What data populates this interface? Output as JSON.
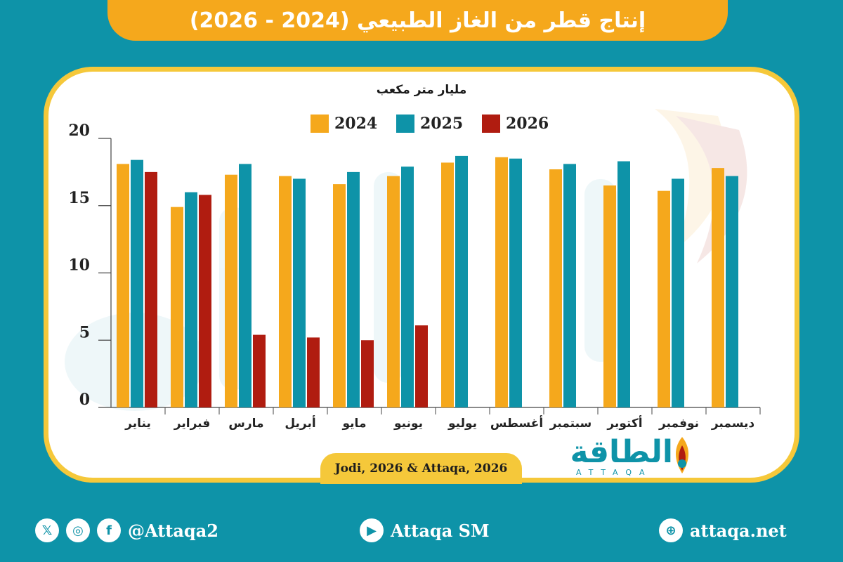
{
  "title": "إنتاج قطر من الغاز الطبيعي (2024 - 2026)",
  "chart_data": {
    "type": "bar",
    "unit_label": "مليار متر مكعب",
    "categories": [
      "يناير",
      "فبراير",
      "مارس",
      "أبريل",
      "مايو",
      "يونيو",
      "يوليو",
      "أغسطس",
      "سبتمبر",
      "أكتوبر",
      "نوفمبر",
      "ديسمبر"
    ],
    "series": [
      {
        "name": "2024",
        "color": "#f5a81c",
        "values": [
          18.1,
          14.9,
          17.3,
          17.2,
          16.6,
          17.2,
          18.2,
          18.6,
          17.7,
          16.5,
          16.1,
          17.8
        ]
      },
      {
        "name": "2025",
        "color": "#0e93a8",
        "values": [
          18.4,
          16.0,
          18.1,
          17.0,
          17.5,
          17.9,
          18.7,
          18.5,
          18.1,
          18.3,
          17.0,
          17.2
        ]
      },
      {
        "name": "2026",
        "color": "#b01c10",
        "values": [
          17.5,
          15.8,
          5.4,
          5.2,
          5.0,
          6.1,
          null,
          null,
          null,
          null,
          null,
          null
        ]
      }
    ],
    "ylim": [
      0,
      20
    ],
    "yticks": [
      0,
      5,
      10,
      15,
      20
    ],
    "grid": false,
    "legend_position": "top-center"
  },
  "source": "Jodi, 2026 & Attaqa, 2026",
  "logo": {
    "arabic": "الطاقة",
    "english": "ATTAQA"
  },
  "footer": {
    "social_handle": "@Attaqa2",
    "youtube": "Attaqa SM",
    "website": "attaqa.net"
  }
}
